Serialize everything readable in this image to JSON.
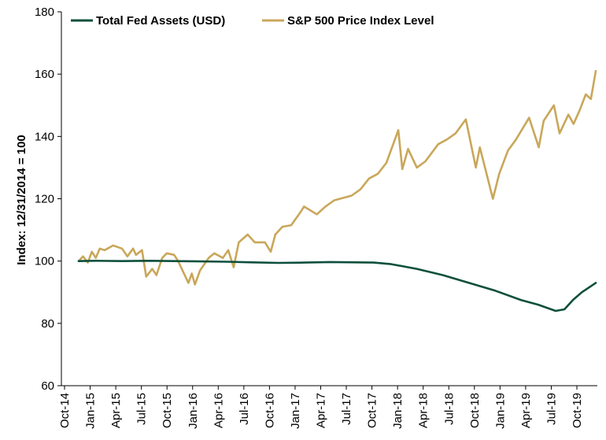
{
  "chart_data": {
    "type": "line",
    "title": "",
    "xlabel": "",
    "ylabel": "Index: 12/31/2014 = 100",
    "ylim": [
      60,
      180
    ],
    "yticks": [
      60,
      80,
      100,
      120,
      140,
      160,
      180
    ],
    "x_tick_labels": [
      "Oct-14",
      "Jan-15",
      "Apr-15",
      "Jul-15",
      "Oct-15",
      "Jan-16",
      "Apr-16",
      "Jul-16",
      "Oct-16",
      "Jan-17",
      "Apr-17",
      "Jul-17",
      "Oct-17",
      "Jan-18",
      "Apr-18",
      "Jul-18",
      "Oct-18",
      "Jan-19",
      "Apr-19",
      "Jul-19",
      "Oct-19"
    ],
    "x_range": [
      "2014-12-31",
      "2019-12-20"
    ],
    "grid": false,
    "legend": "top-left",
    "series": [
      {
        "name": "Total Fed Assets (USD)",
        "color": "#0d4f3c",
        "points": [
          [
            "2014-12-31",
            100.0
          ],
          [
            "2015-03-01",
            100.1
          ],
          [
            "2015-06-01",
            100.0
          ],
          [
            "2015-09-01",
            100.1
          ],
          [
            "2015-12-01",
            100.0
          ],
          [
            "2016-03-01",
            99.9
          ],
          [
            "2016-06-01",
            99.8
          ],
          [
            "2016-09-01",
            99.6
          ],
          [
            "2016-12-01",
            99.4
          ],
          [
            "2017-03-01",
            99.5
          ],
          [
            "2017-06-01",
            99.7
          ],
          [
            "2017-09-01",
            99.6
          ],
          [
            "2017-11-01",
            99.5
          ],
          [
            "2018-01-01",
            99.0
          ],
          [
            "2018-04-01",
            97.5
          ],
          [
            "2018-07-01",
            95.5
          ],
          [
            "2018-10-01",
            93.0
          ],
          [
            "2019-01-01",
            90.5
          ],
          [
            "2019-04-01",
            87.5
          ],
          [
            "2019-06-01",
            86.0
          ],
          [
            "2019-08-01",
            84.0
          ],
          [
            "2019-09-01",
            84.5
          ],
          [
            "2019-10-01",
            87.5
          ],
          [
            "2019-11-01",
            90.0
          ],
          [
            "2019-12-20",
            93.0
          ]
        ]
      },
      {
        "name": "S&P 500 Price Index Level",
        "color": "#c9a75a",
        "points": [
          [
            "2014-12-31",
            100
          ],
          [
            "2015-01-15",
            101.5
          ],
          [
            "2015-02-01",
            99.5
          ],
          [
            "2015-02-15",
            103
          ],
          [
            "2015-03-01",
            101
          ],
          [
            "2015-03-15",
            104
          ],
          [
            "2015-04-01",
            103.5
          ],
          [
            "2015-05-01",
            105
          ],
          [
            "2015-06-01",
            104
          ],
          [
            "2015-06-20",
            101.5
          ],
          [
            "2015-07-10",
            104
          ],
          [
            "2015-07-20",
            102
          ],
          [
            "2015-08-10",
            103.5
          ],
          [
            "2015-08-25",
            95
          ],
          [
            "2015-09-15",
            97.5
          ],
          [
            "2015-09-30",
            95.5
          ],
          [
            "2015-10-20",
            101
          ],
          [
            "2015-11-05",
            102.5
          ],
          [
            "2015-12-01",
            102
          ],
          [
            "2015-12-15",
            100
          ],
          [
            "2016-01-20",
            93
          ],
          [
            "2016-02-01",
            96
          ],
          [
            "2016-02-12",
            92.5
          ],
          [
            "2016-03-01",
            97
          ],
          [
            "2016-03-31",
            101
          ],
          [
            "2016-04-20",
            102.5
          ],
          [
            "2016-05-20",
            101
          ],
          [
            "2016-06-08",
            103.5
          ],
          [
            "2016-06-27",
            98
          ],
          [
            "2016-07-15",
            106
          ],
          [
            "2016-08-15",
            108.5
          ],
          [
            "2016-09-09",
            106
          ],
          [
            "2016-10-15",
            106
          ],
          [
            "2016-11-04",
            103
          ],
          [
            "2016-11-20",
            108.5
          ],
          [
            "2016-12-15",
            111
          ],
          [
            "2017-01-15",
            111.5
          ],
          [
            "2017-02-15",
            115.5
          ],
          [
            "2017-03-01",
            117.5
          ],
          [
            "2017-04-15",
            115
          ],
          [
            "2017-05-15",
            117.5
          ],
          [
            "2017-06-15",
            119.5
          ],
          [
            "2017-08-15",
            121
          ],
          [
            "2017-09-15",
            123
          ],
          [
            "2017-10-15",
            126.5
          ],
          [
            "2017-11-15",
            128
          ],
          [
            "2017-12-15",
            131.5
          ],
          [
            "2018-01-26",
            142
          ],
          [
            "2018-02-09",
            129.5
          ],
          [
            "2018-03-01",
            136
          ],
          [
            "2018-04-01",
            130
          ],
          [
            "2018-05-01",
            132
          ],
          [
            "2018-06-15",
            137.5
          ],
          [
            "2018-07-15",
            139
          ],
          [
            "2018-08-15",
            141
          ],
          [
            "2018-09-20",
            145.5
          ],
          [
            "2018-10-25",
            130
          ],
          [
            "2018-11-08",
            136.5
          ],
          [
            "2018-12-24",
            120
          ],
          [
            "2019-01-15",
            128
          ],
          [
            "2019-02-15",
            135.5
          ],
          [
            "2019-03-15",
            139
          ],
          [
            "2019-04-30",
            146
          ],
          [
            "2019-06-03",
            136.5
          ],
          [
            "2019-06-20",
            145
          ],
          [
            "2019-07-26",
            150
          ],
          [
            "2019-08-15",
            141
          ],
          [
            "2019-09-15",
            147
          ],
          [
            "2019-10-03",
            144
          ],
          [
            "2019-10-25",
            148.5
          ],
          [
            "2019-11-15",
            153.5
          ],
          [
            "2019-12-03",
            152
          ],
          [
            "2019-12-20",
            161
          ]
        ]
      }
    ]
  }
}
